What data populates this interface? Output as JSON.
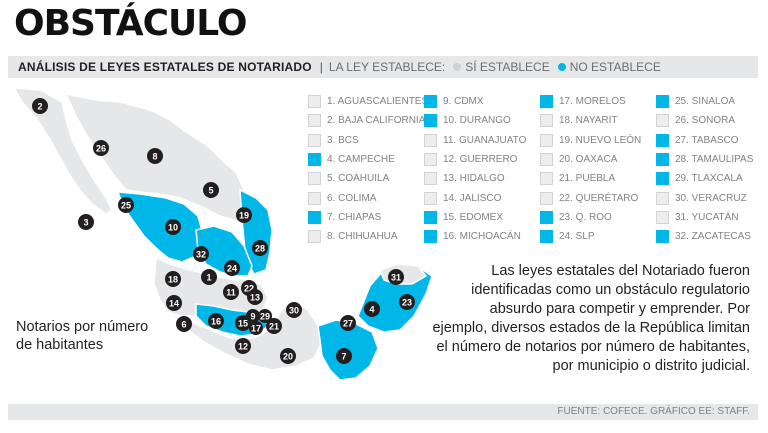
{
  "title": "OBSTÁCULO",
  "subtitle": "ANÁLISIS DE LEYES ESTATALES DE NOTARIADO",
  "legend_header": {
    "intro": "LA LEY ESTABLECE:",
    "yes_label": "SÍ ESTABLECE",
    "no_label": "NO ESTABLECE",
    "yes_color": "#cfd1d2",
    "no_color": "#00b7e8"
  },
  "states": [
    {
      "label": "1. AGUASCALIENTES",
      "status": "si"
    },
    {
      "label": "2. BAJA CALIFORNIA",
      "status": "si"
    },
    {
      "label": "3. BCS",
      "status": "si"
    },
    {
      "label": "4. CAMPECHE",
      "status": "no"
    },
    {
      "label": "5. COAHUILA",
      "status": "si"
    },
    {
      "label": "6. COLIMA",
      "status": "si"
    },
    {
      "label": "7. CHIAPAS",
      "status": "no"
    },
    {
      "label": "8. CHIHUAHUA",
      "status": "si"
    },
    {
      "label": "9. CDMX",
      "status": "no"
    },
    {
      "label": "10. DURANGO",
      "status": "no"
    },
    {
      "label": "11. GUANAJUATO",
      "status": "si"
    },
    {
      "label": "12. GUERRERO",
      "status": "si"
    },
    {
      "label": "13. HIDALGO",
      "status": "si"
    },
    {
      "label": "14. JALISCO",
      "status": "si"
    },
    {
      "label": "15. EDOMEX",
      "status": "no"
    },
    {
      "label": "16. MICHOACÁN",
      "status": "no"
    },
    {
      "label": "17. MORELOS",
      "status": "no"
    },
    {
      "label": "18. NAYARIT",
      "status": "si"
    },
    {
      "label": "19. NUEVO LEÓN",
      "status": "si"
    },
    {
      "label": "20. OAXACA",
      "status": "si"
    },
    {
      "label": "21. PUEBLA",
      "status": "si"
    },
    {
      "label": "22. QUERÉTARO",
      "status": "si"
    },
    {
      "label": "23. Q. ROO",
      "status": "no"
    },
    {
      "label": "24. SLP",
      "status": "no"
    },
    {
      "label": "25. SINALOA",
      "status": "no"
    },
    {
      "label": "26. SONORA",
      "status": "si"
    },
    {
      "label": "27. TABASCO",
      "status": "no"
    },
    {
      "label": "28. TAMAULIPAS",
      "status": "no"
    },
    {
      "label": "29. TLAXCALA",
      "status": "no"
    },
    {
      "label": "30. VERACRUZ",
      "status": "si"
    },
    {
      "label": "31. YUCATÁN",
      "status": "si"
    },
    {
      "label": "32. ZACATECAS",
      "status": "no"
    }
  ],
  "map_caption": "Notarios por número de habitantes",
  "note": "Las leyes estatales del Notariado fueron identificadas como un obstáculo regulatorio absurdo para competir y emprender. Por ejemplo, diversos estados de la República limitan el número de notarios por número de habitantes, por municipio o distrito judicial.",
  "footer": "FUENTE: COFECE. GRÁFICO EE: STAFF."
}
